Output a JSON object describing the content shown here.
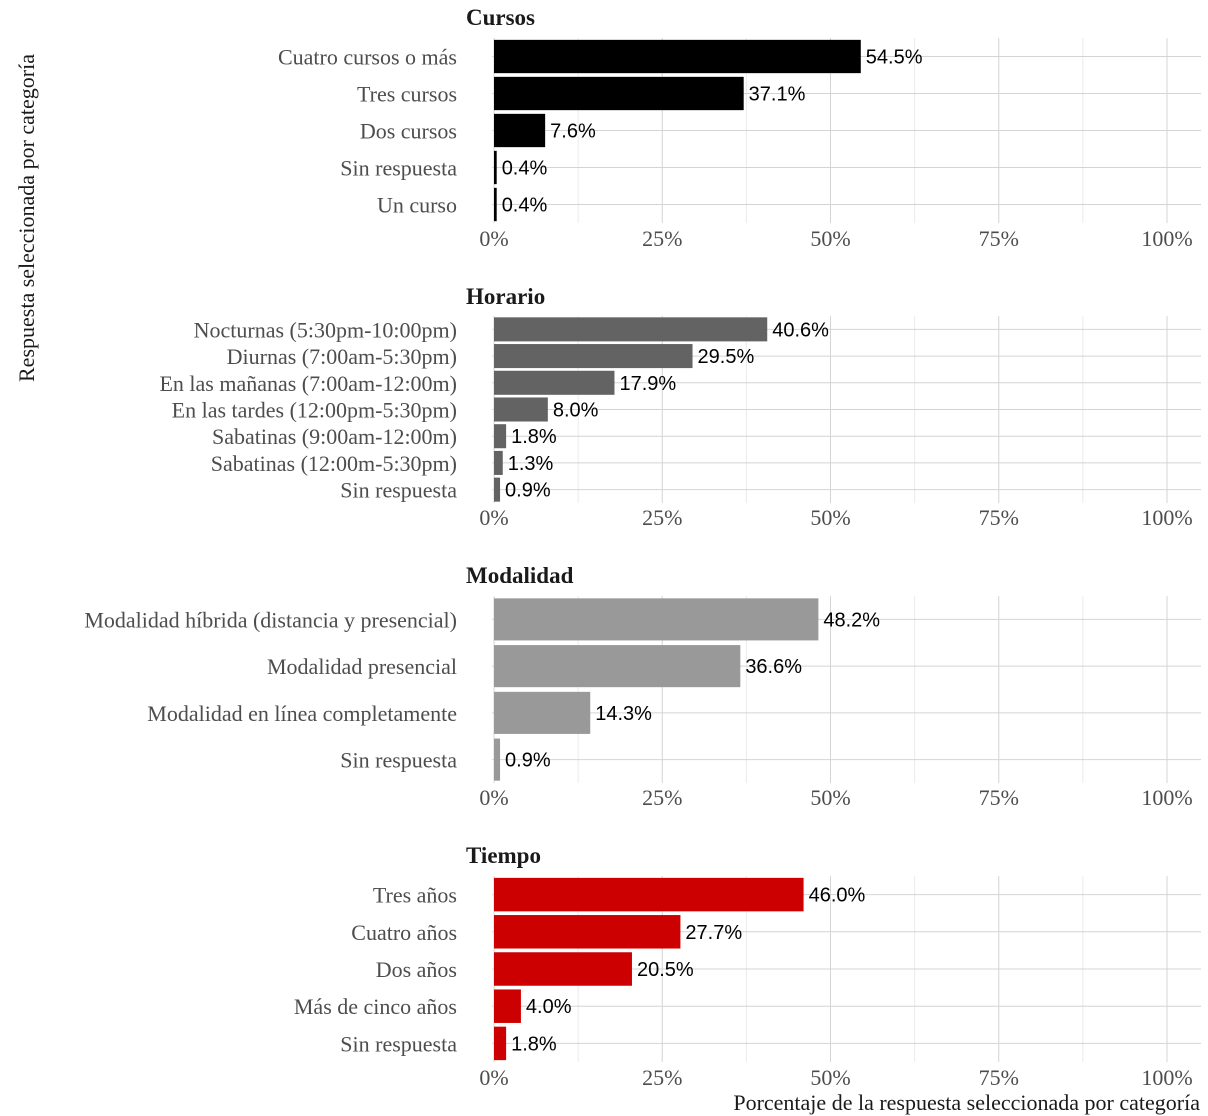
{
  "chart_data": [
    {
      "type": "bar",
      "orientation": "horizontal",
      "title": "Cursos",
      "color": "#000000",
      "categories": [
        "Cuatro cursos o más",
        "Tres cursos",
        "Dos cursos",
        "Sin respuesta",
        "Un curso"
      ],
      "values": [
        54.5,
        37.1,
        7.6,
        0.4,
        0.4
      ],
      "value_labels": [
        "54.5%",
        "37.1%",
        "7.6%",
        "0.4%",
        "0.4%"
      ],
      "xlim": [
        0,
        100
      ],
      "xticks": [
        "0%",
        "25%",
        "50%",
        "75%",
        "100%"
      ],
      "grid": true
    },
    {
      "type": "bar",
      "orientation": "horizontal",
      "title": "Horario",
      "color": "#636363",
      "categories": [
        "Nocturnas (5:30pm-10:00pm)",
        "Diurnas (7:00am-5:30pm)",
        "En las mañanas (7:00am-12:00m)",
        "En las tardes (12:00pm-5:30pm)",
        "Sabatinas (9:00am-12:00m)",
        "Sabatinas (12:00m-5:30pm)",
        "Sin respuesta"
      ],
      "values": [
        40.6,
        29.5,
        17.9,
        8.0,
        1.8,
        1.3,
        0.9
      ],
      "value_labels": [
        "40.6%",
        "29.5%",
        "17.9%",
        "8.0%",
        "1.8%",
        "1.3%",
        "0.9%"
      ],
      "xlim": [
        0,
        100
      ],
      "xticks": [
        "0%",
        "25%",
        "50%",
        "75%",
        "100%"
      ],
      "grid": true
    },
    {
      "type": "bar",
      "orientation": "horizontal",
      "title": "Modalidad",
      "color": "#999999",
      "categories": [
        "Modalidad híbrida (distancia y presencial)",
        "Modalidad  presencial",
        "Modalidad en línea completamente",
        "Sin respuesta "
      ],
      "values": [
        48.2,
        36.6,
        14.3,
        0.9
      ],
      "value_labels": [
        "48.2%",
        "36.6%",
        "14.3%",
        "0.9%"
      ],
      "xlim": [
        0,
        100
      ],
      "xticks": [
        "0%",
        "25%",
        "50%",
        "75%",
        "100%"
      ],
      "grid": true
    },
    {
      "type": "bar",
      "orientation": "horizontal",
      "title": "Tiempo",
      "color": "#cc0000",
      "categories": [
        "Tres años",
        "Cuatro años",
        "Dos años",
        "Más de cinco años",
        "Sin respuesta"
      ],
      "values": [
        46.0,
        27.7,
        20.5,
        4.0,
        1.8
      ],
      "value_labels": [
        "46.0%",
        "27.7%",
        "20.5%",
        "4.0%",
        "1.8%"
      ],
      "xlim": [
        0,
        100
      ],
      "xticks": [
        "0%",
        "25%",
        "50%",
        "75%",
        "100%"
      ],
      "grid": true
    }
  ],
  "axes": {
    "ylabel": "Respuesta seleccionada por categoría",
    "xlabel": "Porcentaje de la respuesta seleccionada por categoría"
  }
}
